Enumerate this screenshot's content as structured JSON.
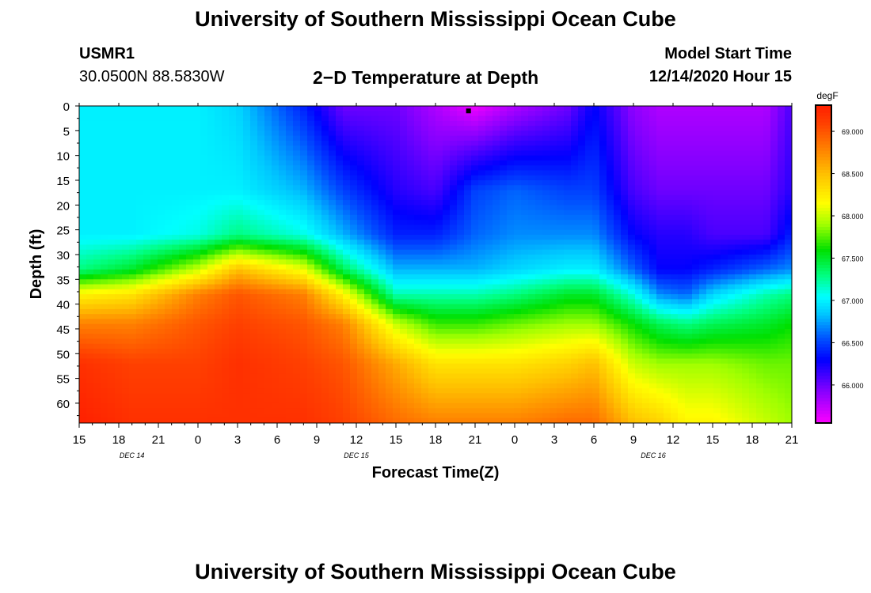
{
  "header": {
    "title": "University of Southern Mississippi Ocean Cube",
    "station_id": "USMR1",
    "coordinates": "30.0500N 88.5830W",
    "subtitle": "2−D Temperature at Depth",
    "model_start_label": "Model Start Time",
    "model_start_value": "12/14/2020 Hour 15"
  },
  "footer": {
    "title": "University of Southern Mississippi Ocean Cube"
  },
  "chart_data": {
    "type": "heatmap",
    "title": "2−D Temperature at Depth",
    "xlabel": "Forecast Time(Z)",
    "ylabel": "Depth (ft)",
    "x_tick_labels": [
      "15",
      "18",
      "21",
      "0",
      "3",
      "6",
      "9",
      "12",
      "15",
      "18",
      "21",
      "0",
      "3",
      "6",
      "9",
      "12",
      "15",
      "18",
      "21"
    ],
    "x_hours_from_start": [
      0,
      3,
      6,
      9,
      12,
      15,
      18,
      21,
      24,
      27,
      30,
      33,
      36,
      39,
      42,
      45,
      48,
      51,
      54
    ],
    "date_labels": [
      {
        "label": "DEC 14",
        "hour": 4
      },
      {
        "label": "DEC 15",
        "hour": 21
      },
      {
        "label": "DEC 16",
        "hour": 43.5
      }
    ],
    "y_tick_labels": [
      "0",
      "5",
      "10",
      "15",
      "20",
      "25",
      "30",
      "35",
      "40",
      "45",
      "50",
      "55",
      "60"
    ],
    "y_ticks": [
      0,
      5,
      10,
      15,
      20,
      25,
      30,
      35,
      40,
      45,
      50,
      55,
      60
    ],
    "xlim": [
      0,
      54
    ],
    "ylim": [
      0,
      64
    ],
    "colorbar": {
      "unit": "degF",
      "min": 65.55,
      "max": 69.3,
      "tick_values": [
        66.0,
        66.5,
        67.0,
        67.5,
        68.0,
        68.5,
        69.0
      ],
      "tick_labels": [
        "66.000",
        "66.500",
        "67.000",
        "67.500",
        "68.000",
        "68.500",
        "69.000"
      ]
    },
    "colormap": [
      {
        "v": 65.55,
        "c": "#ff00ff"
      },
      {
        "v": 65.95,
        "c": "#8000ff"
      },
      {
        "v": 66.3,
        "c": "#0000ff"
      },
      {
        "v": 66.55,
        "c": "#0050ff"
      },
      {
        "v": 66.85,
        "c": "#00c8ff"
      },
      {
        "v": 67.05,
        "c": "#00ffff"
      },
      {
        "v": 67.3,
        "c": "#00ff80"
      },
      {
        "v": 67.6,
        "c": "#00e000"
      },
      {
        "v": 67.9,
        "c": "#a0ff00"
      },
      {
        "v": 68.15,
        "c": "#ffff00"
      },
      {
        "v": 68.5,
        "c": "#ffc000"
      },
      {
        "v": 68.8,
        "c": "#ff8000"
      },
      {
        "v": 69.1,
        "c": "#ff4000"
      },
      {
        "v": 69.3,
        "c": "#ff2000"
      }
    ],
    "profile_depths_ft": [
      0,
      17,
      26,
      33,
      38,
      44,
      52,
      64
    ],
    "profile_times_hours": [
      0,
      4,
      9,
      12,
      17,
      20,
      24,
      27,
      30,
      33,
      37,
      39,
      42,
      44,
      46,
      48,
      52,
      54
    ],
    "temperature_profiles_degF": [
      [
        67.0,
        67.0,
        67.0,
        67.3,
        68.2,
        68.8,
        69.2,
        69.3
      ],
      [
        67.0,
        67.0,
        67.0,
        67.5,
        68.3,
        68.8,
        69.1,
        69.2
      ],
      [
        67.0,
        67.0,
        67.1,
        68.0,
        68.8,
        69.0,
        69.1,
        69.2
      ],
      [
        66.9,
        67.0,
        67.3,
        68.5,
        69.0,
        69.1,
        69.2,
        69.2
      ],
      [
        66.4,
        66.8,
        67.1,
        68.1,
        68.8,
        69.0,
        69.1,
        69.2
      ],
      [
        66.0,
        66.5,
        66.8,
        67.4,
        68.2,
        68.8,
        69.0,
        69.1
      ],
      [
        66.0,
        66.2,
        66.4,
        66.8,
        67.2,
        68.0,
        68.6,
        68.9
      ],
      [
        65.8,
        66.1,
        66.4,
        66.8,
        67.2,
        67.7,
        68.3,
        68.8
      ],
      [
        65.6,
        66.5,
        66.6,
        66.8,
        67.2,
        67.7,
        68.3,
        68.8
      ],
      [
        65.8,
        66.6,
        66.7,
        66.9,
        67.3,
        67.8,
        68.3,
        68.8
      ],
      [
        66.0,
        66.5,
        66.7,
        67.0,
        67.5,
        67.9,
        68.4,
        68.9
      ],
      [
        66.3,
        66.5,
        66.7,
        67.0,
        67.5,
        67.9,
        68.5,
        68.9
      ],
      [
        65.9,
        66.1,
        66.3,
        66.6,
        67.1,
        67.6,
        68.0,
        68.5
      ],
      [
        65.8,
        66.0,
        66.2,
        66.3,
        66.7,
        67.4,
        67.9,
        68.4
      ],
      [
        65.8,
        66.0,
        66.2,
        66.3,
        66.6,
        67.3,
        67.9,
        68.2
      ],
      [
        65.8,
        66.0,
        66.1,
        66.4,
        66.9,
        67.4,
        67.9,
        68.2
      ],
      [
        65.8,
        66.0,
        66.1,
        66.6,
        67.2,
        67.5,
        67.8,
        68.0
      ],
      [
        66.1,
        66.2,
        66.4,
        66.7,
        67.3,
        67.6,
        67.8,
        67.9
      ]
    ],
    "marker": {
      "hour": 29.5,
      "depth_ft": 1
    }
  }
}
